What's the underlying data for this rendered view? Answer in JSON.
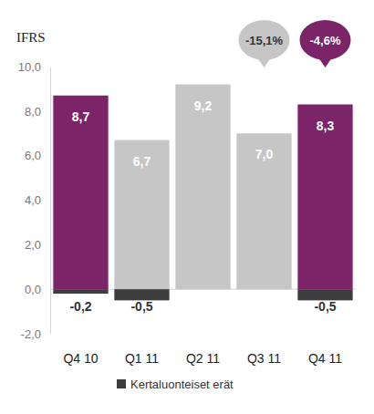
{
  "chart_data": {
    "type": "bar",
    "title": "IFRS",
    "categories": [
      "Q4 10",
      "Q1 11",
      "Q2 11",
      "Q3 11",
      "Q4 11"
    ],
    "series": [
      {
        "colors": [
          "#7b2468",
          "#c6c6c6",
          "#c6c6c6",
          "#c6c6c6",
          "#7b2468"
        ],
        "values": [
          8.7,
          6.7,
          9.2,
          7.0,
          8.3
        ],
        "value_labels": [
          "8,7",
          "6,7",
          "9,2",
          "7,0",
          "8,3"
        ]
      },
      {
        "name": "Kertaluonteiset erät",
        "color": "#3d3d3d",
        "values": [
          -0.2,
          -0.5,
          null,
          null,
          -0.5
        ],
        "value_labels": [
          "-0,2",
          "-0,5",
          null,
          null,
          "-0,5"
        ]
      }
    ],
    "ylim": [
      -2,
      10
    ],
    "yticks": [
      {
        "value": -2,
        "label": "-2,0"
      },
      {
        "value": 0,
        "label": "0,0"
      },
      {
        "value": 2,
        "label": "2,0"
      },
      {
        "value": 4,
        "label": "4,0"
      },
      {
        "value": 6,
        "label": "6,0"
      },
      {
        "value": 8,
        "label": "8,0"
      },
      {
        "value": 10,
        "label": "10,0"
      }
    ],
    "grid": false,
    "data_labels": true,
    "legend": "bottom",
    "annotations": [
      {
        "text": "-15,1%",
        "category": "Q3 11",
        "color": "#c6c6c6"
      },
      {
        "text": "-4,6%",
        "category": "Q4 11",
        "color": "#7b2468"
      }
    ]
  }
}
